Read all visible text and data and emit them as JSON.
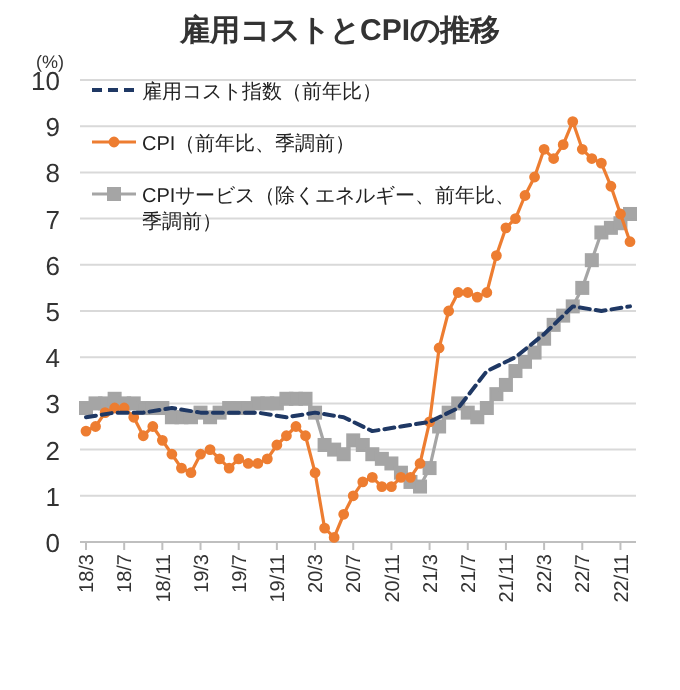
{
  "chart_data": {
    "type": "line",
    "title": "雇用コストとCPIの推移",
    "ylabel": "(%)",
    "categories": [
      "18/3",
      null,
      null,
      null,
      "18/7",
      null,
      null,
      null,
      "18/11",
      null,
      null,
      null,
      "19/3",
      null,
      null,
      null,
      "19/7",
      null,
      null,
      null,
      "19/11",
      null,
      null,
      null,
      "20/3",
      null,
      null,
      null,
      "20/7",
      null,
      null,
      null,
      "20/11",
      null,
      null,
      null,
      "21/3",
      null,
      null,
      null,
      "21/7",
      null,
      null,
      null,
      "21/11",
      null,
      null,
      null,
      "22/3",
      null,
      null,
      null,
      "22/7",
      null,
      null,
      null,
      "22/11",
      null
    ],
    "ylim": [
      0,
      10
    ],
    "yticks": [
      0,
      1,
      2,
      3,
      4,
      5,
      6,
      7,
      8,
      9,
      10
    ],
    "grid": "y",
    "legend": "top left",
    "series": [
      {
        "name": "雇用コスト指数（前年比）",
        "color": "#1f3864",
        "line_style": "dashed",
        "marker": "none",
        "values": [
          2.7,
          null,
          null,
          2.8,
          null,
          null,
          2.8,
          null,
          null,
          2.9,
          null,
          null,
          2.8,
          null,
          null,
          2.8,
          null,
          null,
          2.8,
          null,
          null,
          2.7,
          null,
          null,
          2.8,
          null,
          null,
          2.7,
          null,
          null,
          2.4,
          null,
          null,
          2.5,
          null,
          null,
          2.6,
          null,
          null,
          2.9,
          null,
          null,
          3.7,
          null,
          null,
          4.0,
          null,
          null,
          4.5,
          null,
          null,
          5.1,
          null,
          null,
          5.0,
          null,
          null,
          5.1
        ]
      },
      {
        "name": "CPI（前年比、季調前）",
        "color": "#ed7d31",
        "line_style": "solid",
        "marker": "circle",
        "values": [
          2.4,
          2.5,
          2.8,
          2.9,
          2.9,
          2.7,
          2.3,
          2.5,
          2.2,
          1.9,
          1.6,
          1.5,
          1.9,
          2.0,
          1.8,
          1.6,
          1.8,
          1.7,
          1.7,
          1.8,
          2.1,
          2.3,
          2.5,
          2.3,
          1.5,
          0.3,
          0.1,
          0.6,
          1.0,
          1.3,
          1.4,
          1.2,
          1.2,
          1.4,
          1.4,
          1.7,
          2.6,
          4.2,
          5.0,
          5.4,
          5.4,
          5.3,
          5.4,
          6.2,
          6.8,
          7.0,
          7.5,
          7.9,
          8.5,
          8.3,
          8.6,
          9.1,
          8.5,
          8.3,
          8.2,
          7.7,
          7.1,
          6.5
        ]
      },
      {
        "name": "CPIサービス（除くエネルギー、前年比、季調前）",
        "color": "#a5a5a5",
        "line_style": "solid",
        "marker": "square",
        "values": [
          2.9,
          3.0,
          3.0,
          3.1,
          3.0,
          3.0,
          2.9,
          2.9,
          2.9,
          2.7,
          2.7,
          2.7,
          2.8,
          2.7,
          2.8,
          2.9,
          2.9,
          2.9,
          3.0,
          3.0,
          3.0,
          3.1,
          3.1,
          3.1,
          2.8,
          2.1,
          2.0,
          1.9,
          2.2,
          2.1,
          1.9,
          1.8,
          1.7,
          1.5,
          1.3,
          1.2,
          1.6,
          2.5,
          2.8,
          3.0,
          2.8,
          2.7,
          2.9,
          3.2,
          3.4,
          3.7,
          3.9,
          4.1,
          4.4,
          4.7,
          4.9,
          5.1,
          5.5,
          6.1,
          6.7,
          6.8,
          6.9,
          7.1
        ]
      }
    ]
  }
}
